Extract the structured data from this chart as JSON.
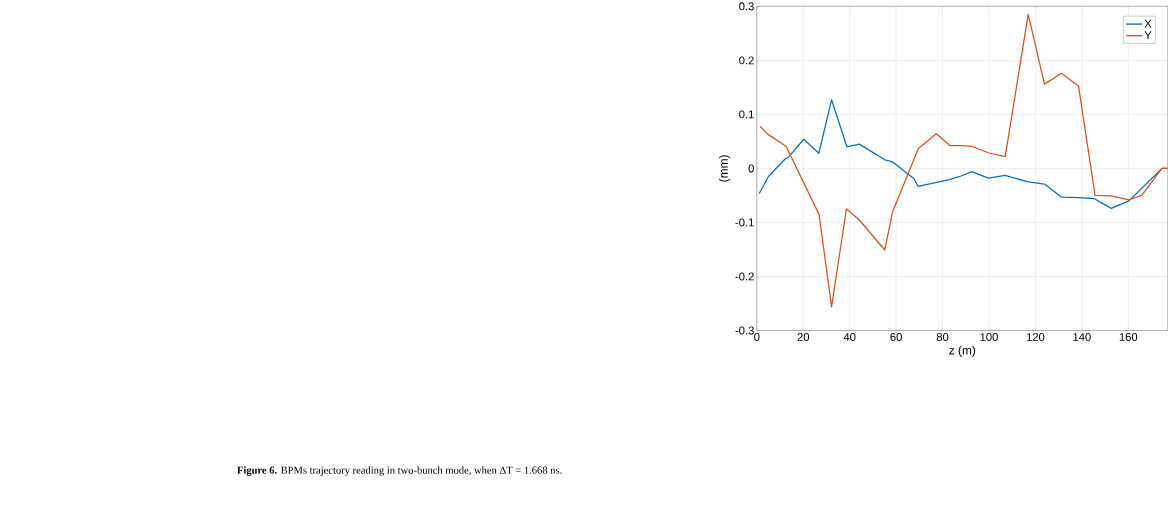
{
  "chart_data": {
    "type": "line",
    "xlabel": "z (m)",
    "ylabel": "(mm)",
    "xlim": [
      0,
      177
    ],
    "xticks": [
      0,
      20,
      40,
      60,
      80,
      100,
      120,
      140,
      160
    ],
    "ylim": [
      -0.3,
      0.3
    ],
    "yticks": [
      -0.3,
      -0.2,
      -0.1,
      0,
      0.1,
      0.2,
      0.3
    ],
    "grid": true,
    "legend": "top right",
    "annotations": [
      "**Figure 6.** BPMs trajectory reading in two-bunch mode, when ΔT = 1.668 ns."
    ],
    "series": [
      {
        "name": "X",
        "color": "#0072bd",
        "x": [
          1,
          5,
          12.3,
          13.5,
          20.2,
          26.7,
          32.2,
          38.8,
          44.1,
          55.2,
          58.5,
          67.7,
          69.4,
          82.5,
          88,
          92.6,
          99.7,
          107,
          116.9,
          123.9,
          131.2,
          138.3,
          145.4,
          152.7,
          160.3,
          174.5,
          177
        ],
        "values": [
          -0.047,
          -0.015,
          0.018,
          0.02,
          0.054,
          0.028,
          0.127,
          0.04,
          0.045,
          0.016,
          0.012,
          -0.019,
          -0.033,
          -0.021,
          -0.014,
          -0.006,
          -0.018,
          -0.013,
          -0.025,
          -0.029,
          -0.053,
          -0.054,
          -0.056,
          -0.074,
          -0.06,
          0,
          0
        ]
      },
      {
        "name": "Y",
        "color": "#d95319",
        "x": [
          1.4,
          4.8,
          12.6,
          26.8,
          32.2,
          38.6,
          44.1,
          55.1,
          58.5,
          69.6,
          77.3,
          83.3,
          88.5,
          92.6,
          99.7,
          107,
          116.9,
          123.9,
          131.2,
          138.6,
          145.7,
          152.7,
          160.3,
          165.8,
          174.5,
          177
        ],
        "values": [
          0.078,
          0.063,
          0.041,
          -0.085,
          -0.256,
          -0.075,
          -0.095,
          -0.151,
          -0.08,
          0.037,
          0.064,
          0.042,
          0.042,
          0.041,
          0.029,
          0.022,
          0.285,
          0.156,
          0.176,
          0.152,
          -0.05,
          -0.051,
          -0.058,
          -0.05,
          0,
          0
        ]
      }
    ]
  }
}
